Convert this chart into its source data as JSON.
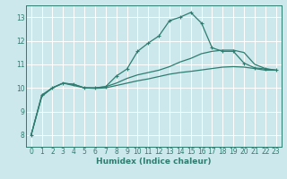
{
  "xlabel": "Humidex (Indice chaleur)",
  "ylabel": "",
  "bg_color": "#cce8ed",
  "grid_color": "#ffffff",
  "line_color": "#2e7d70",
  "xlim": [
    -0.5,
    23.5
  ],
  "ylim": [
    7.5,
    13.5
  ],
  "xticks": [
    0,
    1,
    2,
    3,
    4,
    5,
    6,
    7,
    8,
    9,
    10,
    11,
    12,
    13,
    14,
    15,
    16,
    17,
    18,
    19,
    20,
    21,
    22,
    23
  ],
  "yticks": [
    8,
    9,
    10,
    11,
    12,
    13
  ],
  "curve1_x": [
    0,
    1,
    2,
    3,
    4,
    5,
    6,
    7,
    8,
    9,
    10,
    11,
    12,
    13,
    14,
    15,
    16,
    17,
    18,
    19,
    20,
    21,
    22,
    23
  ],
  "curve1_y": [
    8.0,
    9.7,
    10.0,
    10.2,
    10.15,
    10.0,
    10.0,
    10.05,
    10.5,
    10.8,
    11.55,
    11.9,
    12.2,
    12.85,
    13.0,
    13.2,
    12.75,
    11.7,
    11.55,
    11.55,
    11.05,
    10.85,
    10.8,
    10.75
  ],
  "curve2_x": [
    0,
    1,
    2,
    3,
    4,
    5,
    6,
    7,
    8,
    9,
    10,
    11,
    12,
    13,
    14,
    15,
    16,
    17,
    18,
    19,
    20,
    21,
    22,
    23
  ],
  "curve2_y": [
    8.0,
    9.65,
    10.0,
    10.2,
    10.15,
    10.0,
    10.0,
    10.05,
    10.2,
    10.4,
    10.55,
    10.65,
    10.75,
    10.9,
    11.1,
    11.25,
    11.45,
    11.55,
    11.6,
    11.6,
    11.5,
    11.0,
    10.82,
    10.75
  ],
  "curve3_x": [
    0,
    1,
    2,
    3,
    4,
    5,
    6,
    7,
    8,
    9,
    10,
    11,
    12,
    13,
    14,
    15,
    16,
    17,
    18,
    19,
    20,
    21,
    22,
    23
  ],
  "curve3_y": [
    8.0,
    9.65,
    10.0,
    10.2,
    10.1,
    10.0,
    9.98,
    10.0,
    10.1,
    10.2,
    10.3,
    10.38,
    10.48,
    10.58,
    10.65,
    10.7,
    10.76,
    10.82,
    10.88,
    10.9,
    10.88,
    10.82,
    10.75,
    10.75
  ]
}
